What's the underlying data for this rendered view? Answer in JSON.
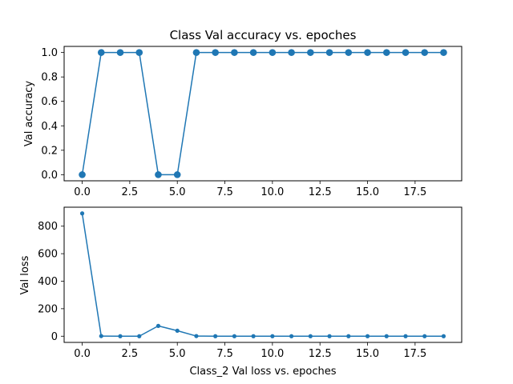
{
  "chart_data": [
    {
      "type": "line",
      "title": "Class Val accuracy vs. epoches",
      "xlabel": "",
      "ylabel": "Val accuracy",
      "x": [
        0,
        1,
        2,
        3,
        4,
        5,
        6,
        7,
        8,
        9,
        10,
        11,
        12,
        13,
        14,
        15,
        16,
        17,
        18,
        19
      ],
      "series": [
        {
          "values": [
            0,
            1,
            1,
            1,
            0,
            0,
            1,
            1,
            1,
            1,
            1,
            1,
            1,
            1,
            1,
            1,
            1,
            1,
            1,
            1
          ]
        }
      ],
      "xlim": [
        -0.95,
        19.95
      ],
      "ylim": [
        -0.05,
        1.05
      ],
      "xticks": [
        0,
        2.5,
        5,
        7.5,
        10,
        12.5,
        15,
        17.5
      ],
      "xtick_labels": [
        "0.0",
        "2.5",
        "5.0",
        "7.5",
        "10.0",
        "12.5",
        "15.0",
        "17.5"
      ],
      "yticks": [
        0,
        0.2,
        0.4,
        0.6,
        0.8,
        1.0
      ],
      "ytick_labels": [
        "0.0",
        "0.2",
        "0.4",
        "0.6",
        "0.8",
        "1.0"
      ],
      "grid": false,
      "color": "#1f77b4",
      "marker": "large-circle"
    },
    {
      "type": "line",
      "title": "",
      "xlabel": "Class_2 Val loss vs. epoches",
      "ylabel": "Val loss",
      "x": [
        0,
        1,
        2,
        3,
        4,
        5,
        6,
        7,
        8,
        9,
        10,
        11,
        12,
        13,
        14,
        15,
        16,
        17,
        18,
        19
      ],
      "series": [
        {
          "values": [
            893,
            1,
            0,
            0,
            75,
            40,
            1,
            0,
            0,
            0,
            0,
            0,
            0,
            0,
            0,
            0,
            0,
            0,
            0,
            0
          ]
        }
      ],
      "xlim": [
        -0.95,
        19.95
      ],
      "ylim": [
        -45,
        938
      ],
      "xticks": [
        0,
        2.5,
        5,
        7.5,
        10,
        12.5,
        15,
        17.5
      ],
      "xtick_labels": [
        "0.0",
        "2.5",
        "5.0",
        "7.5",
        "10.0",
        "12.5",
        "15.0",
        "17.5"
      ],
      "yticks": [
        0,
        200,
        400,
        600,
        800
      ],
      "ytick_labels": [
        "0",
        "200",
        "400",
        "600",
        "800"
      ],
      "grid": false,
      "color": "#1f77b4",
      "marker": "small-circle"
    }
  ]
}
